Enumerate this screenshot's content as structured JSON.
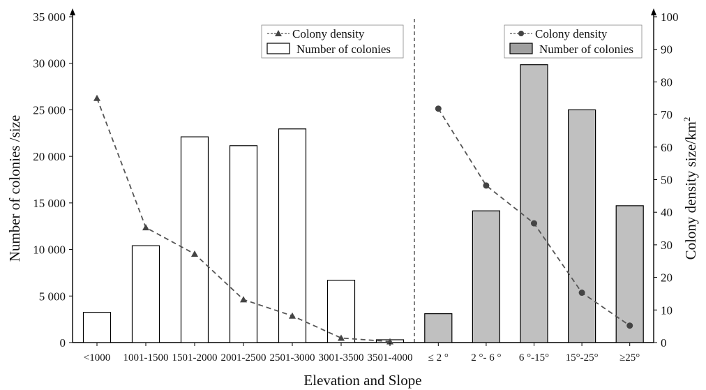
{
  "chart_data": {
    "type": "bar",
    "xlabel": "Elevation and Slope",
    "ylabel_left": "Number of colonies /size",
    "ylabel_right_main": "Colony density  size/km",
    "ylabel_right_sup": "2",
    "ylim_left": [
      0,
      35000
    ],
    "ylim_right": [
      0,
      100
    ],
    "yticks_left": [
      {
        "value": 0,
        "label": "0"
      },
      {
        "value": 5000,
        "label": "5 000"
      },
      {
        "value": 10000,
        "label": "10 000"
      },
      {
        "value": 15000,
        "label": "15 000"
      },
      {
        "value": 20000,
        "label": "20 000"
      },
      {
        "value": 25000,
        "label": "25 000"
      },
      {
        "value": 30000,
        "label": "30 000"
      },
      {
        "value": 35000,
        "label": "35 000"
      }
    ],
    "yticks_right": [
      0,
      10,
      20,
      30,
      40,
      50,
      60,
      70,
      80,
      90,
      100
    ],
    "categories": [
      "<1000",
      "1001-1500",
      "1501-2000",
      "2001-2500",
      "2501-3000",
      "3001-3500",
      "3501-4000",
      "≤ 2 °",
      "2 °- 6 °",
      "6 °-15°",
      "15°-25°",
      "≥25°"
    ],
    "groups": [
      {
        "name": "Elevation",
        "categories": [
          "<1000",
          "1001-1500",
          "1501-2000",
          "2001-2500",
          "2501-3000",
          "3001-3500",
          "3501-4000"
        ],
        "series": [
          {
            "name": "Number of colonies",
            "kind": "bar",
            "axis": "left",
            "fill": "#ffffff",
            "values": [
              3250,
              10400,
              22100,
              21150,
              22950,
              6700,
              300
            ]
          },
          {
            "name": "Colony density",
            "kind": "line",
            "marker": "triangle",
            "axis": "right",
            "values": [
              75,
              35.3,
              27.2,
              13.2,
              8.2,
              1.4,
              0.3
            ]
          }
        ],
        "legend": {
          "position": "top-right",
          "line_label": "Colony density",
          "bar_label": "Number of colonies"
        }
      },
      {
        "name": "Slope",
        "categories": [
          "≤ 2 °",
          "2 °- 6 °",
          "6 °-15°",
          "15°-25°",
          "≥25°"
        ],
        "series": [
          {
            "name": "Number of colonies",
            "kind": "bar",
            "axis": "left",
            "fill": "#c0c0c0",
            "values": [
              3100,
              14150,
              29850,
              25000,
              14700
            ]
          },
          {
            "name": "Colony density",
            "kind": "line",
            "marker": "circle",
            "axis": "right",
            "values": [
              71.8,
              48.2,
              36.6,
              15.3,
              5.2
            ]
          }
        ],
        "legend": {
          "position": "top-right",
          "line_label": "Colony density",
          "bar_label": "Number of colonies"
        }
      }
    ],
    "colors": {
      "line": "#555555",
      "marker": "#444444",
      "bar_outline": "#000000",
      "slope_bar_fill": "#c0c0c0",
      "legend_swatch_gray": "#a0a0a0"
    },
    "grid": false
  }
}
